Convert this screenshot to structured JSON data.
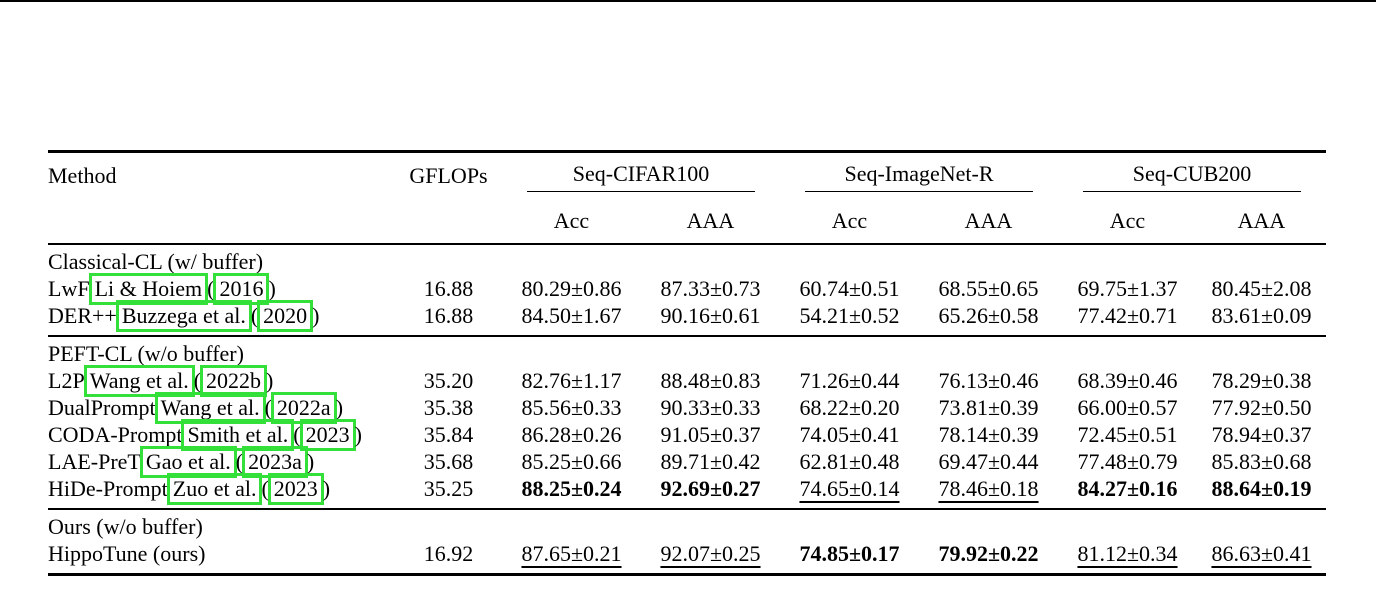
{
  "table": {
    "header": {
      "method": "Method",
      "gflops": "GFLOPs",
      "datasets": [
        "Seq-CIFAR100",
        "Seq-ImageNet-R",
        "Seq-CUB200"
      ],
      "metrics": [
        "Acc",
        "AAA",
        "Acc",
        "AAA",
        "Acc",
        "AAA"
      ]
    },
    "sections": [
      {
        "title": "Classical-CL (w/ buffer)",
        "rows": [
          {
            "name": "LwF",
            "cite_authors": "Li & Hoiem",
            "cite_year": "2016",
            "gflops": "16.88",
            "values": [
              "80.29±0.86",
              "87.33±0.73",
              "60.74±0.51",
              "68.55±0.65",
              "69.75±1.37",
              "80.45±2.08"
            ],
            "style": [
              "",
              "",
              "",
              "",
              "",
              ""
            ]
          },
          {
            "name": "DER++",
            "cite_authors": "Buzzega et al.",
            "cite_year": "2020",
            "gflops": "16.88",
            "values": [
              "84.50±1.67",
              "90.16±0.61",
              "54.21±0.52",
              "65.26±0.58",
              "77.42±0.71",
              "83.61±0.09"
            ],
            "style": [
              "",
              "",
              "",
              "",
              "",
              ""
            ]
          }
        ]
      },
      {
        "title": "PEFT-CL (w/o buffer)",
        "rows": [
          {
            "name": "L2P",
            "cite_authors": "Wang et al.",
            "cite_year": "2022b",
            "gflops": "35.20",
            "values": [
              "82.76±1.17",
              "88.48±0.83",
              "71.26±0.44",
              "76.13±0.46",
              "68.39±0.46",
              "78.29±0.38"
            ],
            "style": [
              "",
              "",
              "",
              "",
              "",
              ""
            ]
          },
          {
            "name": "DualPrompt",
            "cite_authors": "Wang et al.",
            "cite_year": "2022a",
            "gflops": "35.38",
            "values": [
              "85.56±0.33",
              "90.33±0.33",
              "68.22±0.20",
              "73.81±0.39",
              "66.00±0.57",
              "77.92±0.50"
            ],
            "style": [
              "",
              "",
              "",
              "",
              "",
              ""
            ]
          },
          {
            "name": "CODA-Prompt",
            "cite_authors": "Smith et al.",
            "cite_year": "2023",
            "gflops": "35.84",
            "values": [
              "86.28±0.26",
              "91.05±0.37",
              "74.05±0.41",
              "78.14±0.39",
              "72.45±0.51",
              "78.94±0.37"
            ],
            "style": [
              "",
              "",
              "",
              "",
              "",
              ""
            ]
          },
          {
            "name": "LAE-PreT",
            "cite_authors": "Gao et al.",
            "cite_year": "2023a",
            "gflops": "35.68",
            "values": [
              "85.25±0.66",
              "89.71±0.42",
              "62.81±0.48",
              "69.47±0.44",
              "77.48±0.79",
              "85.83±0.68"
            ],
            "style": [
              "",
              "",
              "",
              "",
              "",
              ""
            ]
          },
          {
            "name": "HiDe-Prompt",
            "cite_authors": "Zuo et al.",
            "cite_year": "2023",
            "gflops": "35.25",
            "values": [
              "88.25±0.24",
              "92.69±0.27",
              "74.65±0.14",
              "78.46±0.18",
              "84.27±0.16",
              "88.64±0.19"
            ],
            "style": [
              "best",
              "best",
              "second",
              "second",
              "best",
              "best"
            ]
          }
        ]
      },
      {
        "title": "Ours (w/o buffer)",
        "rows": [
          {
            "name": "HippoTune (ours)",
            "cite_authors": "",
            "cite_year": "",
            "gflops": "16.92",
            "values": [
              "87.65±0.21",
              "92.07±0.25",
              "74.85±0.17",
              "79.92±0.22",
              "81.12±0.34",
              "86.63±0.41"
            ],
            "style": [
              "second",
              "second",
              "best",
              "best",
              "second",
              "second"
            ]
          }
        ]
      }
    ]
  }
}
